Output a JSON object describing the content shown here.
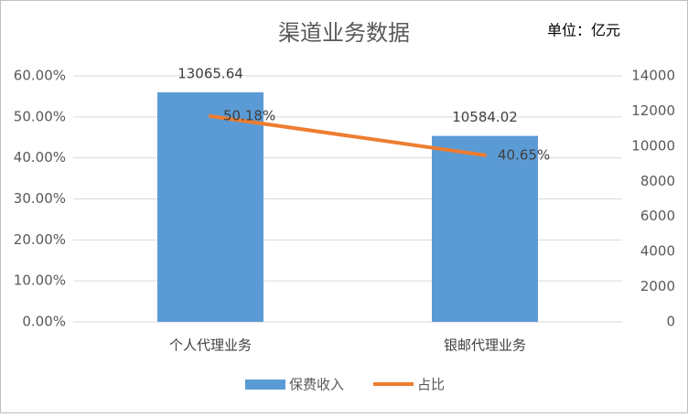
{
  "chart_data": {
    "type": "bar-line",
    "title": "渠道业务数据",
    "annotation": "单位：亿元",
    "categories": [
      "个人代理业务",
      "银邮代理业务"
    ],
    "series": [
      {
        "name": "保费收入",
        "type": "bar",
        "axis": "y2",
        "color": "#5b9bd5",
        "values": [
          13065.64,
          10584.02
        ]
      },
      {
        "name": "占比",
        "type": "line",
        "axis": "y",
        "color": "#ed7d31",
        "values": [
          50.18,
          40.65
        ],
        "value_labels": [
          "50.18%",
          "40.65%"
        ]
      }
    ],
    "ylim": [
      0,
      60
    ],
    "yticks": [
      {
        "value": 0,
        "label": "0.00%"
      },
      {
        "value": 10,
        "label": "10.00%"
      },
      {
        "value": 20,
        "label": "20.00%"
      },
      {
        "value": 30,
        "label": "30.00%"
      },
      {
        "value": 40,
        "label": "40.00%"
      },
      {
        "value": 50,
        "label": "50.00%"
      },
      {
        "value": 60,
        "label": "60.00%"
      }
    ],
    "y2lim": [
      0,
      14000
    ],
    "y2ticks": [
      0,
      2000,
      4000,
      6000,
      8000,
      10000,
      12000,
      14000
    ],
    "grid": true,
    "legend": "bottom"
  }
}
